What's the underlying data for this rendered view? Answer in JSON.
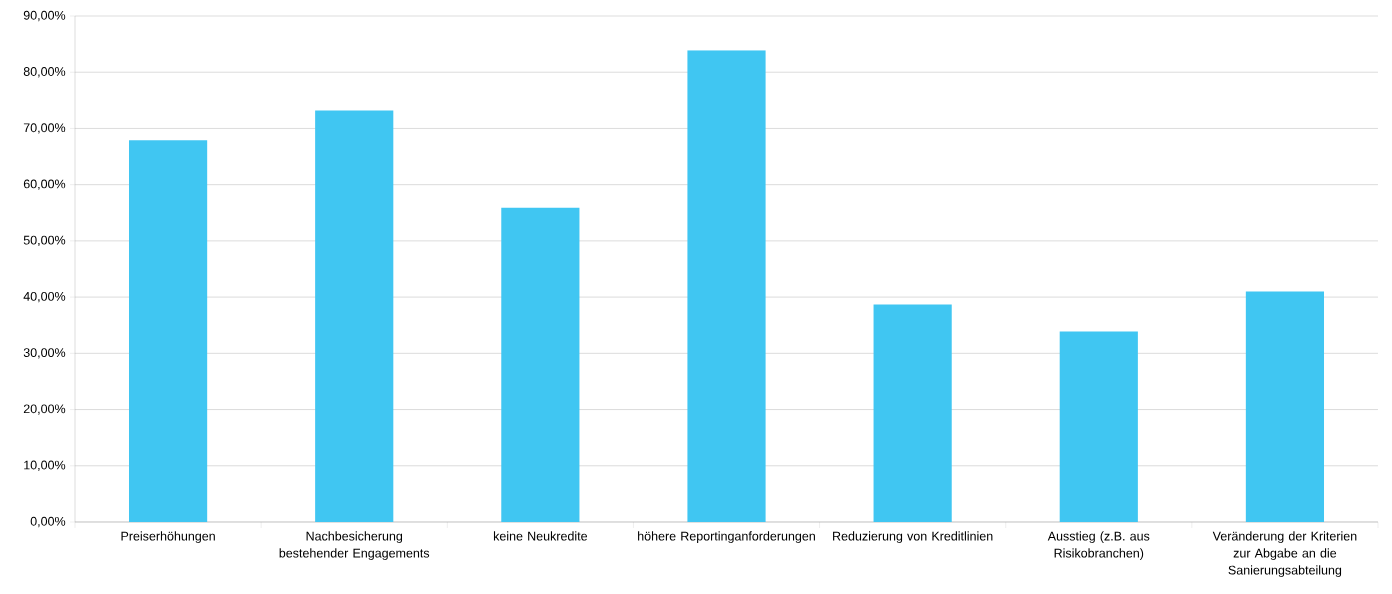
{
  "chart_data": {
    "type": "bar",
    "categories": [
      "Preiserhöhungen",
      "Nachbesicherung bestehender Engagements",
      "keine Neukredite",
      "höhere Reportinganforderungen",
      "Reduzierung von Kreditlinien",
      "Ausstieg (z.B. aus Risikobranchen)",
      "Veränderung der Kriterien zur Abgabe an die Sanierungsabteilung"
    ],
    "values": [
      67.9,
      73.2,
      55.9,
      83.9,
      38.7,
      33.9,
      41.0
    ],
    "color": "#40c6f2",
    "ylim": [
      0,
      90
    ],
    "yticks": [
      {
        "value": 0,
        "label": "0,00%"
      },
      {
        "value": 10,
        "label": "10,00%"
      },
      {
        "value": 20,
        "label": "20,00%"
      },
      {
        "value": 30,
        "label": "30,00%"
      },
      {
        "value": 40,
        "label": "40,00%"
      },
      {
        "value": 50,
        "label": "50,00%"
      },
      {
        "value": 60,
        "label": "60,00%"
      },
      {
        "value": 70,
        "label": "70,00%"
      },
      {
        "value": 80,
        "label": "80,00%"
      },
      {
        "value": 90,
        "label": "90,00%"
      }
    ],
    "grid": "y"
  }
}
